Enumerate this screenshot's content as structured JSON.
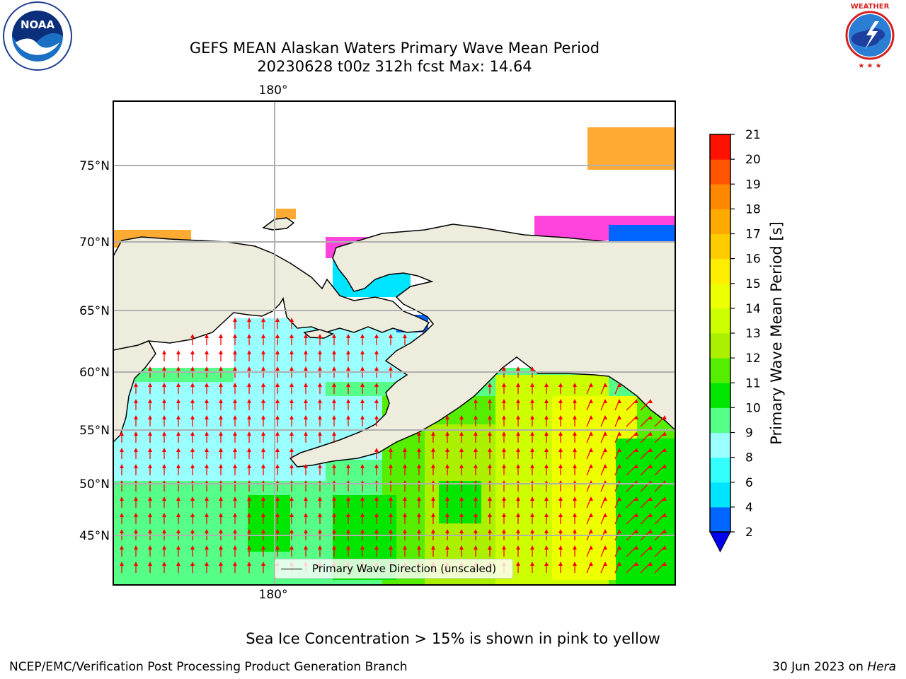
{
  "header": {
    "title_line1": "GEFS MEAN Alaskan Waters Primary Wave Mean Period",
    "title_line2": "20230628 t00z 312h fcst   Max: 14.64"
  },
  "logos": {
    "left": {
      "name": "NOAA",
      "ring_text": "NATIONAL OCEANIC AND ATMOSPHERIC ADMINISTRATION · U.S. DEPARTMENT OF COMMERCE"
    },
    "right": {
      "name": "NATIONAL WEATHER SERVICE"
    }
  },
  "map": {
    "longitude_label_top": "180°",
    "longitude_label_bottom": "180°",
    "latitude_labels": [
      "75°N",
      "70°N",
      "65°N",
      "60°N",
      "55°N",
      "50°N",
      "45°N"
    ],
    "legend_label": "Primary Wave Direction (unscaled)"
  },
  "colorbar": {
    "title": "Primary Wave Mean Period [s]",
    "ticks": [
      "2",
      "4",
      "6",
      "8",
      "9",
      "10",
      "11",
      "12",
      "13",
      "14",
      "15",
      "16",
      "17",
      "18",
      "19",
      "20",
      "21"
    ],
    "colors": [
      "#0066ff",
      "#00e5ff",
      "#33ffff",
      "#99ffff",
      "#55ff88",
      "#00e600",
      "#55ee00",
      "#aaf000",
      "#ccff00",
      "#eeff00",
      "#ffee00",
      "#ffcc00",
      "#ffaa00",
      "#ff8800",
      "#ff5500",
      "#ff1100"
    ],
    "extend_color": "#0000ee"
  },
  "footer": {
    "note": "Sea Ice Concentration > 15% is shown in pink to yellow",
    "left": "NCEP/EMC/Verification Post Processing Product Generation Branch",
    "right_prefix": "30 Jun 2023 on",
    "right_machine": "Hera"
  },
  "colors": {
    "land": "#eeecdc",
    "arrow": "#ff0000",
    "ice_pink": "#ff44dd",
    "ice_orange": "#ffaa33"
  }
}
